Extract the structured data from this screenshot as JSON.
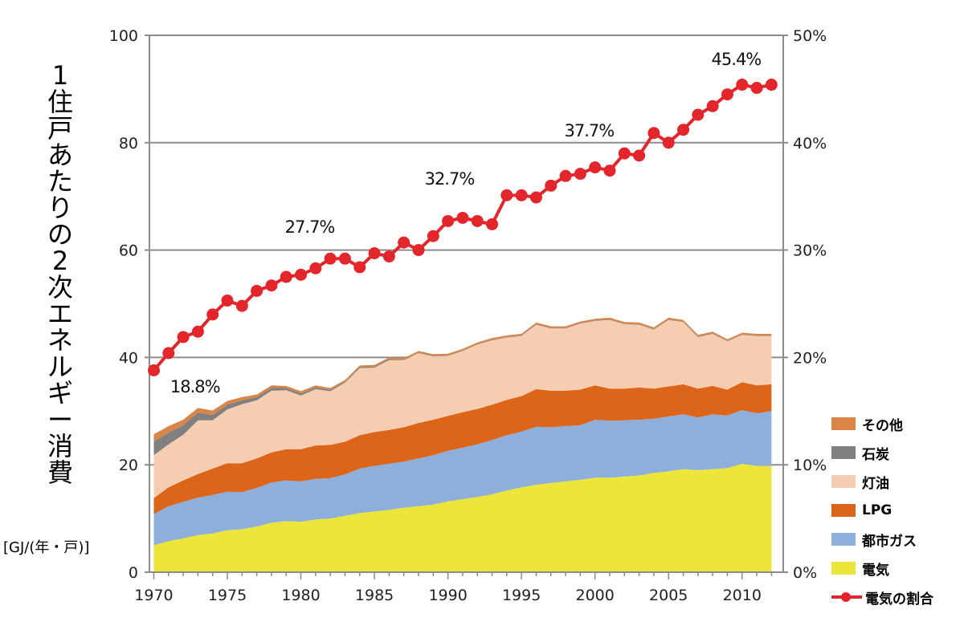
{
  "chart_data": {
    "type": "area",
    "ylabel": "1住戸あたりの2次エネルギー消費",
    "unit": "[GJ/(年・戸)]",
    "left_axis": {
      "min": 0,
      "max": 100,
      "ticks": [
        "0",
        "20",
        "40",
        "60",
        "80",
        "100"
      ]
    },
    "right_axis": {
      "min": 0,
      "max": 50,
      "ticks": [
        "0%",
        "10%",
        "20%",
        "30%",
        "40%",
        "50%"
      ]
    },
    "x_ticks": [
      "1970",
      "1975",
      "1980",
      "1985",
      "1990",
      "1995",
      "2000",
      "2005",
      "2010"
    ],
    "x": [
      1970,
      1971,
      1972,
      1973,
      1974,
      1975,
      1976,
      1977,
      1978,
      1979,
      1980,
      1981,
      1982,
      1983,
      1984,
      1985,
      1986,
      1987,
      1988,
      1989,
      1990,
      1991,
      1992,
      1993,
      1994,
      1995,
      1996,
      1997,
      1998,
      1999,
      2000,
      2001,
      2002,
      2003,
      2004,
      2005,
      2006,
      2007,
      2008,
      2009,
      2010,
      2011,
      2012
    ],
    "series": [
      {
        "name": "電気",
        "color": "#ede63a",
        "values": [
          5.0,
          5.8,
          6.3,
          6.9,
          7.2,
          7.8,
          8.0,
          8.5,
          9.2,
          9.5,
          9.4,
          9.8,
          10.0,
          10.5,
          11.0,
          11.3,
          11.6,
          12.0,
          12.3,
          12.6,
          13.2,
          13.6,
          14.0,
          14.5,
          15.2,
          15.8,
          16.3,
          16.6,
          16.9,
          17.2,
          17.6,
          17.6,
          17.8,
          18.0,
          18.5,
          18.8,
          19.2,
          19.0,
          19.2,
          19.4,
          20.2,
          19.8,
          19.8
        ]
      },
      {
        "name": "都市ガス",
        "color": "#8eaedc",
        "values": [
          5.8,
          6.5,
          6.8,
          7.0,
          7.2,
          7.2,
          6.9,
          7.2,
          7.5,
          7.6,
          7.5,
          7.6,
          7.5,
          7.7,
          8.3,
          8.5,
          8.6,
          8.6,
          8.9,
          9.2,
          9.4,
          9.6,
          9.8,
          10.1,
          10.3,
          10.4,
          10.8,
          10.4,
          10.3,
          10.2,
          10.8,
          10.6,
          10.5,
          10.4,
          10.1,
          10.2,
          10.2,
          9.8,
          10.2,
          9.8,
          10.0,
          9.8,
          10.2
        ]
      },
      {
        "name": "LPG",
        "color": "#dc6519",
        "values": [
          3.0,
          3.5,
          4.0,
          4.4,
          4.9,
          5.3,
          5.4,
          5.5,
          5.6,
          5.8,
          6.0,
          6.2,
          6.2,
          6.1,
          6.2,
          6.3,
          6.3,
          6.4,
          6.6,
          6.6,
          6.5,
          6.6,
          6.6,
          6.6,
          6.6,
          6.6,
          7.0,
          6.8,
          6.6,
          6.6,
          6.4,
          6.0,
          5.9,
          6.0,
          5.6,
          5.6,
          5.6,
          5.4,
          5.3,
          4.8,
          5.2,
          5.2,
          5.0
        ]
      },
      {
        "name": "灯油",
        "color": "#f6cdb0",
        "values": [
          8.0,
          8.0,
          8.5,
          10.0,
          9.0,
          10.0,
          11.0,
          10.8,
          11.5,
          11.0,
          10.0,
          10.5,
          10.0,
          11.0,
          12.5,
          12.0,
          13.0,
          12.5,
          13.0,
          11.8,
          11.2,
          11.4,
          12.0,
          12.0,
          11.6,
          11.2,
          12.0,
          11.6,
          11.6,
          12.3,
          12.0,
          12.8,
          12.0,
          11.7,
          11.0,
          12.4,
          11.6,
          9.6,
          9.7,
          9.0,
          8.8,
          9.2,
          9.0
        ]
      },
      {
        "name": "石炭",
        "color": "#808080",
        "values": [
          2.5,
          2.2,
          1.8,
          1.4,
          1.0,
          0.9,
          0.7,
          0.6,
          0.5,
          0.4,
          0.4,
          0.3,
          0.3,
          0.2,
          0.2,
          0.2,
          0.2,
          0.1,
          0.1,
          0.1,
          0.1,
          0.1,
          0.1,
          0.1,
          0.1,
          0.1,
          0.1,
          0.1,
          0.1,
          0.1,
          0.1,
          0.1,
          0.1,
          0.1,
          0.1,
          0.1,
          0.1,
          0.1,
          0.1,
          0.1,
          0.1,
          0.1,
          0.1
        ]
      },
      {
        "name": "その他",
        "color": "#da8548",
        "values": [
          1.4,
          1.2,
          1.0,
          0.9,
          0.8,
          0.7,
          0.6,
          0.5,
          0.5,
          0.4,
          0.4,
          0.4,
          0.3,
          0.3,
          0.3,
          0.3,
          0.3,
          0.3,
          0.3,
          0.3,
          0.3,
          0.3,
          0.3,
          0.3,
          0.3,
          0.3,
          0.3,
          0.3,
          0.3,
          0.3,
          0.3,
          0.3,
          0.3,
          0.3,
          0.3,
          0.3,
          0.3,
          0.3,
          0.3,
          0.3,
          0.3,
          0.3,
          0.3
        ]
      }
    ],
    "line": {
      "name": "電気の割合",
      "color": "#e3262c",
      "values": [
        18.8,
        20.4,
        21.9,
        22.4,
        24.0,
        25.3,
        24.8,
        26.2,
        26.7,
        27.5,
        27.7,
        28.3,
        29.2,
        29.2,
        28.4,
        29.7,
        29.4,
        30.7,
        30.0,
        31.3,
        32.7,
        33.0,
        32.7,
        32.4,
        35.1,
        35.1,
        34.9,
        36.0,
        36.9,
        37.1,
        37.7,
        37.4,
        39.0,
        38.8,
        40.9,
        40.0,
        41.2,
        42.6,
        43.4,
        44.5,
        45.4,
        45.1,
        45.4
      ]
    },
    "annotations": [
      {
        "text": "18.8%",
        "x": 1972.8,
        "y": 33.5
      },
      {
        "text": "27.7%",
        "x": 1980.6,
        "y": 63.2
      },
      {
        "text": "32.7%",
        "x": 1990.1,
        "y": 72.2
      },
      {
        "text": "37.7%",
        "x": 1999.6,
        "y": 81.2
      },
      {
        "text": "45.4%",
        "x": 2009.6,
        "y": 94.5
      }
    ],
    "legend_order": [
      "その他",
      "石炭",
      "灯油",
      "LPG",
      "都市ガス",
      "電気",
      "電気の割合"
    ],
    "grid": "horizontal"
  }
}
